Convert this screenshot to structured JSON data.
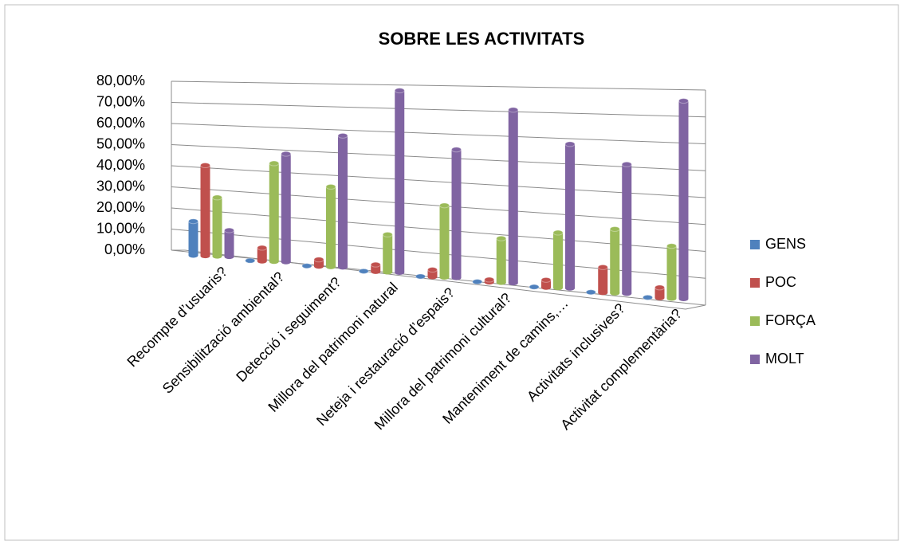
{
  "chart_data": {
    "type": "bar3d",
    "title": "SOBRE LES ACTIVITATS",
    "categories": [
      "Recompte d’usuaris?",
      "Sensibilització ambiental?",
      "Detecció i seguiment?",
      "Millora del patrimoni natural",
      "Neteja i restauració d’espais?",
      "Millora  del patrimoni cultural?",
      "Manteniment de camins,…",
      "Activitats inclusives?",
      "Activitat complementària?"
    ],
    "series": [
      {
        "name": "GENS",
        "color": "#4f81bd",
        "values": [
          16,
          0,
          0,
          0,
          0,
          0,
          0,
          0,
          0
        ]
      },
      {
        "name": "POC",
        "color": "#c0504d",
        "values": [
          42,
          6,
          3,
          3,
          3,
          1,
          3,
          10,
          4
        ]
      },
      {
        "name": "FORÇA",
        "color": "#9bbb59",
        "values": [
          27,
          44,
          35,
          16,
          30,
          18,
          22,
          25,
          20
        ]
      },
      {
        "name": "MOLT",
        "color": "#8064a2",
        "values": [
          12,
          48,
          57,
          77,
          53,
          70,
          57,
          50,
          75
        ]
      }
    ],
    "ylim": [
      0,
      80
    ],
    "yticks": [
      {
        "value": 0,
        "label": "0,00%"
      },
      {
        "value": 10,
        "label": "10,00%"
      },
      {
        "value": 20,
        "label": "20,00%"
      },
      {
        "value": 30,
        "label": "30,00%"
      },
      {
        "value": 40,
        "label": "40,00%"
      },
      {
        "value": 50,
        "label": "50,00%"
      },
      {
        "value": 60,
        "label": "60,00%"
      },
      {
        "value": 70,
        "label": "70,00%"
      },
      {
        "value": 80,
        "label": "80,00%"
      }
    ],
    "grid": true,
    "legend": "right"
  }
}
